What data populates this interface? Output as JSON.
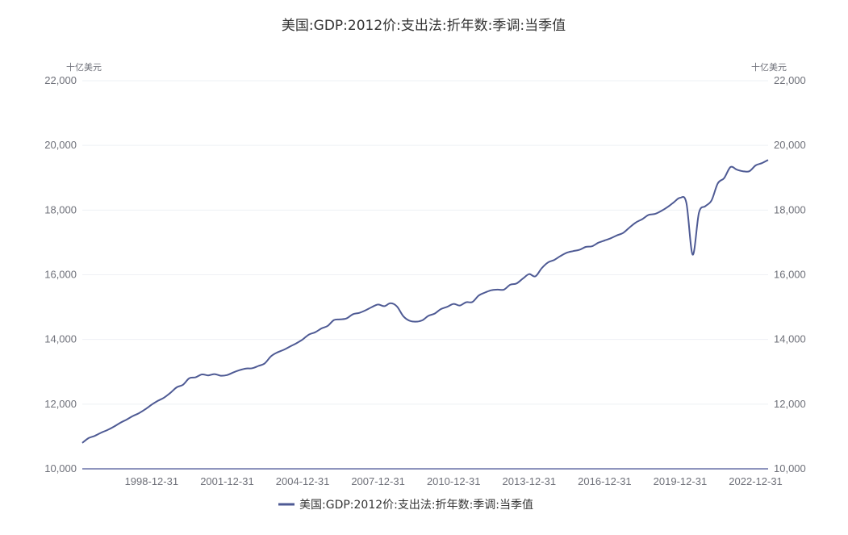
{
  "chart_data": {
    "type": "line",
    "title": "美国:GDP:2012价:支出法:折年数:季调:当季值",
    "left_unit": "十亿美元",
    "right_unit": "十亿美元",
    "ylim": [
      10000,
      22000
    ],
    "y_ticks": [
      {
        "value": 22000,
        "label": "22,000"
      },
      {
        "value": 20000,
        "label": "20,000"
      },
      {
        "value": 18000,
        "label": "18,000"
      },
      {
        "value": 16000,
        "label": "16,000"
      },
      {
        "value": 14000,
        "label": "14,000"
      },
      {
        "value": 12000,
        "label": "12,000"
      },
      {
        "value": 10000,
        "label": "10,000"
      }
    ],
    "xlim": [
      "1996-03-31",
      "2023-06-30"
    ],
    "x_ticks": [
      "1998-12-31",
      "2001-12-31",
      "2004-12-31",
      "2007-12-31",
      "2010-12-31",
      "2013-12-31",
      "2016-12-31",
      "2019-12-31",
      "2022-12-31"
    ],
    "grid": true,
    "legend_position": "bottom",
    "colors": {
      "series": "#4e5a94",
      "axis": "#6a72a8",
      "grid": "#eef0f4"
    },
    "series": [
      {
        "name": "美国:GDP:2012价:支出法:折年数:季调:当季值",
        "points": [
          [
            "1996-03-31",
            10800
          ],
          [
            "1996-06-30",
            10950
          ],
          [
            "1996-09-30",
            11020
          ],
          [
            "1996-12-31",
            11120
          ],
          [
            "1997-03-31",
            11200
          ],
          [
            "1997-06-30",
            11300
          ],
          [
            "1997-09-30",
            11420
          ],
          [
            "1997-12-31",
            11520
          ],
          [
            "1998-03-31",
            11630
          ],
          [
            "1998-06-30",
            11720
          ],
          [
            "1998-09-30",
            11840
          ],
          [
            "1998-12-31",
            11980
          ],
          [
            "1999-03-31",
            12100
          ],
          [
            "1999-06-30",
            12200
          ],
          [
            "1999-09-30",
            12350
          ],
          [
            "1999-12-31",
            12520
          ],
          [
            "2000-03-31",
            12600
          ],
          [
            "2000-06-30",
            12800
          ],
          [
            "2000-09-30",
            12830
          ],
          [
            "2000-12-31",
            12920
          ],
          [
            "2001-03-31",
            12890
          ],
          [
            "2001-06-30",
            12930
          ],
          [
            "2001-09-30",
            12880
          ],
          [
            "2001-12-31",
            12900
          ],
          [
            "2002-03-31",
            12980
          ],
          [
            "2002-06-30",
            13050
          ],
          [
            "2002-09-30",
            13100
          ],
          [
            "2002-12-31",
            13110
          ],
          [
            "2003-03-31",
            13180
          ],
          [
            "2003-06-30",
            13260
          ],
          [
            "2003-09-30",
            13480
          ],
          [
            "2003-12-31",
            13600
          ],
          [
            "2004-03-31",
            13680
          ],
          [
            "2004-06-30",
            13780
          ],
          [
            "2004-09-30",
            13880
          ],
          [
            "2004-12-31",
            14000
          ],
          [
            "2005-03-31",
            14150
          ],
          [
            "2005-06-30",
            14220
          ],
          [
            "2005-09-30",
            14340
          ],
          [
            "2005-12-31",
            14420
          ],
          [
            "2006-03-31",
            14600
          ],
          [
            "2006-06-30",
            14620
          ],
          [
            "2006-09-30",
            14650
          ],
          [
            "2006-12-31",
            14780
          ],
          [
            "2007-03-31",
            14820
          ],
          [
            "2007-06-30",
            14900
          ],
          [
            "2007-09-30",
            15000
          ],
          [
            "2007-12-31",
            15080
          ],
          [
            "2008-03-31",
            15030
          ],
          [
            "2008-06-30",
            15120
          ],
          [
            "2008-09-30",
            15020
          ],
          [
            "2008-12-31",
            14720
          ],
          [
            "2009-03-31",
            14580
          ],
          [
            "2009-06-30",
            14550
          ],
          [
            "2009-09-30",
            14590
          ],
          [
            "2009-12-31",
            14730
          ],
          [
            "2010-03-31",
            14800
          ],
          [
            "2010-06-30",
            14940
          ],
          [
            "2010-09-30",
            15010
          ],
          [
            "2010-12-31",
            15100
          ],
          [
            "2011-03-31",
            15050
          ],
          [
            "2011-06-30",
            15150
          ],
          [
            "2011-09-30",
            15160
          ],
          [
            "2011-12-31",
            15360
          ],
          [
            "2012-03-31",
            15450
          ],
          [
            "2012-06-30",
            15520
          ],
          [
            "2012-09-30",
            15540
          ],
          [
            "2012-12-31",
            15540
          ],
          [
            "2013-03-31",
            15690
          ],
          [
            "2013-06-30",
            15730
          ],
          [
            "2013-09-30",
            15880
          ],
          [
            "2013-12-31",
            16020
          ],
          [
            "2014-03-31",
            15950
          ],
          [
            "2014-06-30",
            16200
          ],
          [
            "2014-09-30",
            16380
          ],
          [
            "2014-12-31",
            16460
          ],
          [
            "2015-03-31",
            16580
          ],
          [
            "2015-06-30",
            16680
          ],
          [
            "2015-09-30",
            16730
          ],
          [
            "2015-12-31",
            16770
          ],
          [
            "2016-03-31",
            16860
          ],
          [
            "2016-06-30",
            16880
          ],
          [
            "2016-09-30",
            16990
          ],
          [
            "2016-12-31",
            17060
          ],
          [
            "2017-03-31",
            17130
          ],
          [
            "2017-06-30",
            17220
          ],
          [
            "2017-09-30",
            17300
          ],
          [
            "2017-12-31",
            17470
          ],
          [
            "2018-03-31",
            17620
          ],
          [
            "2018-06-30",
            17720
          ],
          [
            "2018-09-30",
            17850
          ],
          [
            "2018-12-31",
            17880
          ],
          [
            "2019-03-31",
            17970
          ],
          [
            "2019-06-30",
            18090
          ],
          [
            "2019-09-30",
            18240
          ],
          [
            "2019-12-31",
            18380
          ],
          [
            "2020-03-31",
            18220
          ],
          [
            "2020-06-30",
            16620
          ],
          [
            "2020-09-30",
            17920
          ],
          [
            "2020-12-31",
            18120
          ],
          [
            "2021-03-31",
            18300
          ],
          [
            "2021-06-30",
            18830
          ],
          [
            "2021-09-30",
            18990
          ],
          [
            "2021-12-31",
            19330
          ],
          [
            "2022-03-31",
            19250
          ],
          [
            "2022-06-30",
            19200
          ],
          [
            "2022-09-30",
            19200
          ],
          [
            "2022-12-31",
            19380
          ],
          [
            "2023-03-31",
            19450
          ],
          [
            "2023-06-30",
            19550
          ]
        ]
      }
    ]
  }
}
